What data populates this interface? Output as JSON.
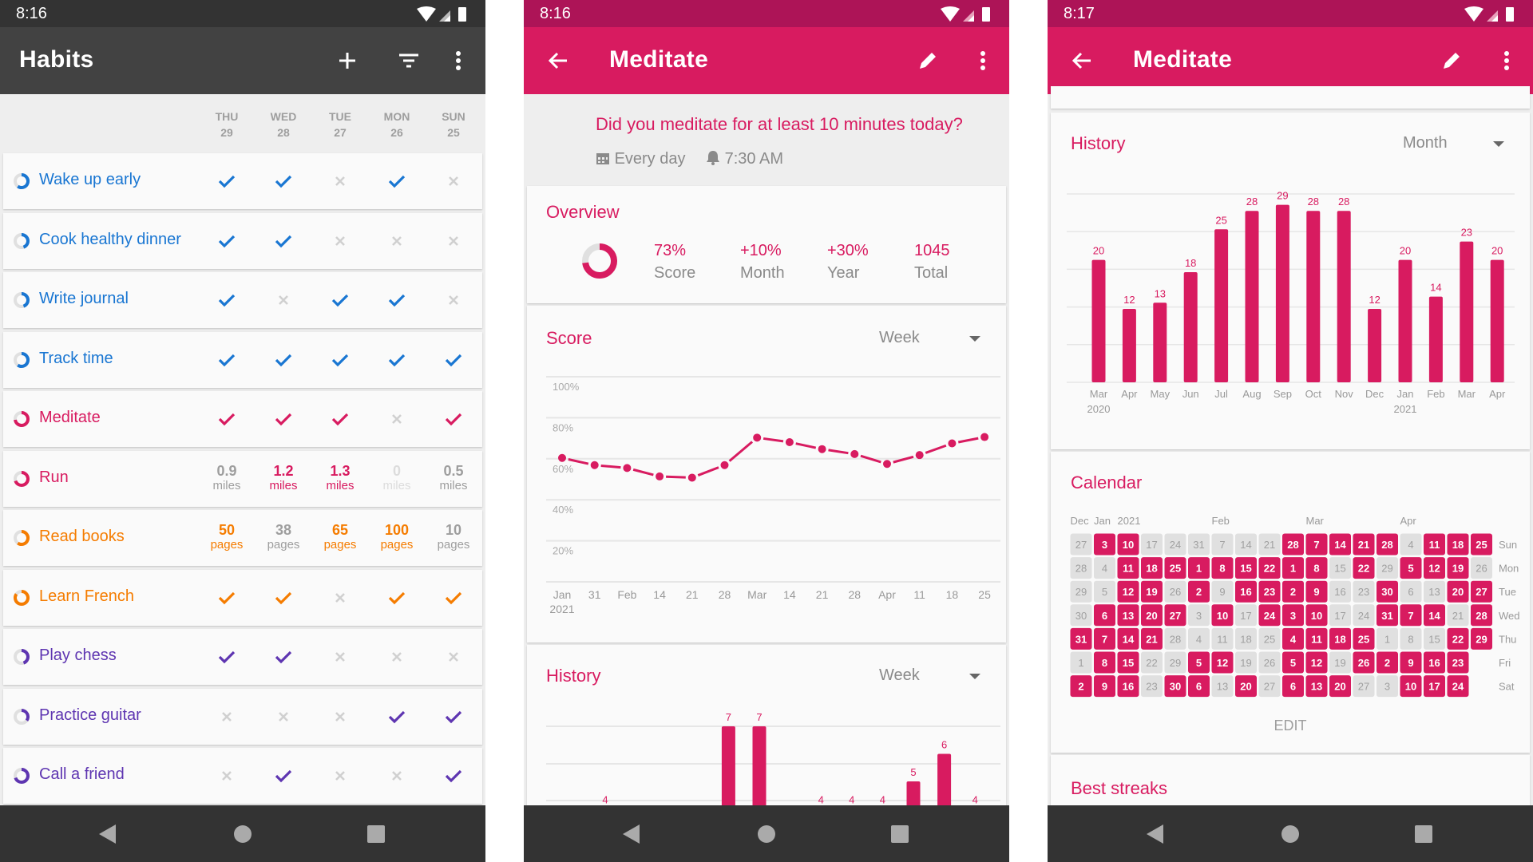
{
  "colors": {
    "pink": "#d81b60",
    "pink_dark": "#ad1457",
    "blue": "#1976d2",
    "orange": "#f57c00",
    "purple": "#5e35b1",
    "dark_bar": "#424242",
    "status_dark": "#333333"
  },
  "habits_screen": {
    "status_time": "8:16",
    "title": "Habits",
    "actions": [
      "add-icon",
      "filter-icon",
      "more-vert-icon"
    ],
    "days": [
      {
        "dow": "THU",
        "date": "29"
      },
      {
        "dow": "WED",
        "date": "28"
      },
      {
        "dow": "TUE",
        "date": "27"
      },
      {
        "dow": "MON",
        "date": "26"
      },
      {
        "dow": "SUN",
        "date": "25"
      }
    ],
    "habits": [
      {
        "name": "Wake up early",
        "color": "#1976d2",
        "score": 0.6,
        "checks": [
          true,
          true,
          false,
          true,
          false
        ]
      },
      {
        "name": "Cook healthy dinner",
        "color": "#1976d2",
        "score": 0.45,
        "checks": [
          true,
          true,
          false,
          false,
          false
        ]
      },
      {
        "name": "Write journal",
        "color": "#1976d2",
        "score": 0.45,
        "checks": [
          true,
          false,
          true,
          true,
          false
        ]
      },
      {
        "name": "Track time",
        "color": "#1976d2",
        "score": 0.6,
        "checks": [
          true,
          true,
          true,
          true,
          true
        ]
      },
      {
        "name": "Meditate",
        "color": "#d81b60",
        "score": 0.73,
        "checks": [
          true,
          true,
          true,
          false,
          true
        ]
      },
      {
        "name": "Run",
        "color": "#d81b60",
        "score": 0.7,
        "values": [
          {
            "v": "0.9",
            "u": "miles",
            "state": "unmet"
          },
          {
            "v": "1.2",
            "u": "miles",
            "state": "met"
          },
          {
            "v": "1.3",
            "u": "miles",
            "state": "met"
          },
          {
            "v": "0",
            "u": "miles",
            "state": "zero"
          },
          {
            "v": "0.5",
            "u": "miles",
            "state": "unmet"
          }
        ]
      },
      {
        "name": "Read books",
        "color": "#f57c00",
        "score": 0.6,
        "values": [
          {
            "v": "50",
            "u": "pages",
            "state": "met"
          },
          {
            "v": "38",
            "u": "pages",
            "state": "unmet"
          },
          {
            "v": "65",
            "u": "pages",
            "state": "met"
          },
          {
            "v": "100",
            "u": "pages",
            "state": "met"
          },
          {
            "v": "10",
            "u": "pages",
            "state": "unmet"
          }
        ]
      },
      {
        "name": "Learn French",
        "color": "#f57c00",
        "score": 0.85,
        "checks": [
          true,
          true,
          false,
          true,
          true
        ]
      },
      {
        "name": "Play chess",
        "color": "#5e35b1",
        "score": 0.45,
        "checks": [
          true,
          true,
          false,
          false,
          false
        ]
      },
      {
        "name": "Practice guitar",
        "color": "#5e35b1",
        "score": 0.35,
        "checks": [
          false,
          false,
          false,
          true,
          true
        ]
      },
      {
        "name": "Call a friend",
        "color": "#5e35b1",
        "score": 0.7,
        "checks": [
          false,
          true,
          false,
          false,
          true
        ]
      }
    ]
  },
  "detail_screen": {
    "status_time": "8:16",
    "title": "Meditate",
    "question": "Did you meditate for at least 10 minutes today?",
    "frequency": "Every day",
    "reminder": "7:30 AM",
    "overview": {
      "title": "Overview",
      "score_fraction": 0.73,
      "stats": [
        {
          "value": "73%",
          "label": "Score"
        },
        {
          "value": "+10%",
          "label": "Month"
        },
        {
          "value": "+30%",
          "label": "Year"
        },
        {
          "value": "1045",
          "label": "Total"
        }
      ]
    },
    "score": {
      "title": "Score",
      "period": "Week"
    },
    "history": {
      "title": "History",
      "period": "Week"
    }
  },
  "detail_screen_2": {
    "status_time": "8:17",
    "title": "Meditate",
    "history": {
      "title": "History",
      "period": "Month"
    },
    "calendar": {
      "title": "Calendar",
      "month_labels": [
        {
          "text": "Dec",
          "col": 0
        },
        {
          "text": "Jan",
          "col": 1
        },
        {
          "text": "2021",
          "col": 2
        },
        {
          "text": "Feb",
          "col": 6
        },
        {
          "text": "Mar",
          "col": 10
        },
        {
          "text": "Apr",
          "col": 14
        }
      ],
      "weekday_labels": [
        "Sun",
        "Mon",
        "Tue",
        "Wed",
        "Thu",
        "Fri",
        "Sat"
      ],
      "rows": [
        {
          "days": [
            "27",
            "3",
            "10",
            "17",
            "24",
            "31",
            "7",
            "14",
            "21",
            "28",
            "7",
            "14",
            "21",
            "28",
            "4",
            "11",
            "18",
            "25"
          ],
          "done": [
            0,
            1,
            1,
            0,
            0,
            0,
            0,
            0,
            0,
            1,
            1,
            1,
            1,
            1,
            0,
            1,
            1,
            1
          ]
        },
        {
          "days": [
            "28",
            "4",
            "11",
            "18",
            "25",
            "1",
            "8",
            "15",
            "22",
            "1",
            "8",
            "15",
            "22",
            "29",
            "5",
            "12",
            "19",
            "26"
          ],
          "done": [
            0,
            0,
            1,
            1,
            1,
            1,
            1,
            1,
            1,
            1,
            1,
            0,
            1,
            0,
            1,
            1,
            1,
            0
          ]
        },
        {
          "days": [
            "29",
            "5",
            "12",
            "19",
            "26",
            "2",
            "9",
            "16",
            "23",
            "2",
            "9",
            "16",
            "23",
            "30",
            "6",
            "13",
            "20",
            "27"
          ],
          "done": [
            0,
            0,
            1,
            1,
            0,
            1,
            0,
            1,
            1,
            1,
            1,
            0,
            0,
            1,
            0,
            0,
            1,
            1
          ]
        },
        {
          "days": [
            "30",
            "6",
            "13",
            "20",
            "27",
            "3",
            "10",
            "17",
            "24",
            "3",
            "10",
            "17",
            "24",
            "31",
            "7",
            "14",
            "21",
            "28"
          ],
          "done": [
            0,
            1,
            1,
            1,
            1,
            0,
            1,
            0,
            1,
            1,
            1,
            0,
            0,
            1,
            1,
            1,
            0,
            1
          ]
        },
        {
          "days": [
            "31",
            "7",
            "14",
            "21",
            "28",
            "4",
            "11",
            "18",
            "25",
            "4",
            "11",
            "18",
            "25",
            "1",
            "8",
            "15",
            "22",
            "29"
          ],
          "done": [
            1,
            1,
            1,
            1,
            0,
            0,
            0,
            0,
            0,
            1,
            1,
            1,
            1,
            0,
            0,
            0,
            1,
            1
          ]
        },
        {
          "days": [
            "1",
            "8",
            "15",
            "22",
            "29",
            "5",
            "12",
            "19",
            "26",
            "5",
            "12",
            "19",
            "26",
            "2",
            "9",
            "16",
            "23"
          ],
          "done": [
            0,
            1,
            1,
            0,
            0,
            1,
            1,
            0,
            0,
            1,
            1,
            0,
            1,
            1,
            1,
            1,
            1
          ]
        },
        {
          "days": [
            "2",
            "9",
            "16",
            "23",
            "30",
            "6",
            "13",
            "20",
            "27",
            "6",
            "13",
            "20",
            "27",
            "3",
            "10",
            "17",
            "24"
          ],
          "done": [
            1,
            1,
            1,
            0,
            1,
            1,
            0,
            1,
            0,
            1,
            1,
            1,
            0,
            0,
            1,
            1,
            1
          ]
        }
      ],
      "edit_label": "EDIT"
    },
    "best_streaks_title": "Best streaks"
  },
  "chart_data": [
    {
      "type": "line",
      "title": "Score",
      "x": [
        "Jan\n2021",
        "31",
        "Feb",
        "14",
        "21",
        "28",
        "Mar",
        "14",
        "21",
        "28",
        "Apr",
        "11",
        "18",
        "25"
      ],
      "values": [
        60.4,
        56.9,
        55.5,
        51.4,
        50.8,
        56.9,
        70.3,
        68.1,
        64.7,
        62.3,
        57.5,
        61.8,
        67.5,
        70.6
      ],
      "yticks": [
        "100%",
        "80%",
        "60%",
        "40%",
        "20%"
      ],
      "ylim": [
        0,
        100
      ],
      "grid": true
    },
    {
      "type": "bar",
      "title": "History",
      "period": "Week",
      "values": [
        4,
        null,
        null,
        null,
        7,
        7,
        null,
        4,
        4,
        4,
        5,
        6,
        4
      ],
      "data_labels": true,
      "grid": true
    },
    {
      "type": "bar",
      "title": "History",
      "period": "Month",
      "categories": [
        "Mar\n2020",
        "Apr",
        "May",
        "Jun",
        "Jul",
        "Aug",
        "Sep",
        "Oct",
        "Nov",
        "Dec",
        "Jan\n2021",
        "Feb",
        "Mar",
        "Apr"
      ],
      "values": [
        20,
        12,
        13,
        18,
        25,
        28,
        29,
        28,
        28,
        12,
        20,
        14,
        23,
        20
      ],
      "data_labels": true,
      "grid": true
    }
  ]
}
